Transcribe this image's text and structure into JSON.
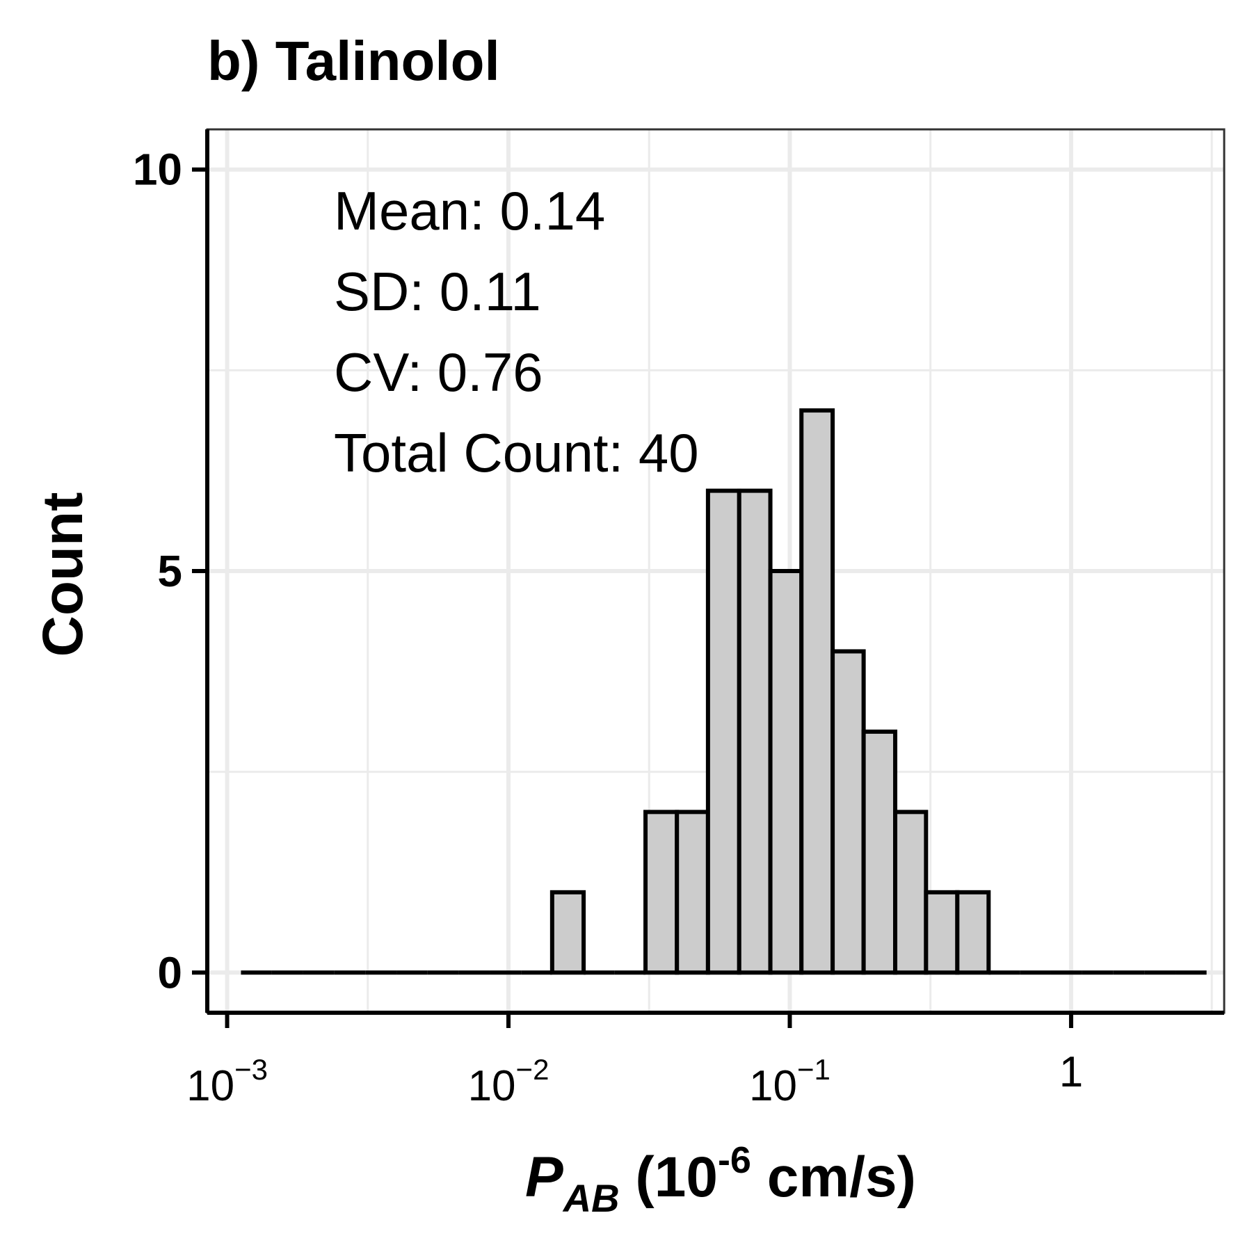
{
  "chart_data": {
    "type": "bar",
    "title": "b) Talinolol",
    "ylabel": "Count",
    "xlabel": {
      "symbol": "P",
      "subscript": "AB",
      "unit_open": " (10",
      "unit_exp": "-6",
      "unit_close": " cm/s)"
    },
    "x_scale": "log10",
    "xlim": [
      0.00085,
      3.5
    ],
    "ylim": [
      -0.5,
      10.5
    ],
    "grid": true,
    "y_ticks": [
      {
        "value": 0,
        "label": "0"
      },
      {
        "value": 5,
        "label": "5"
      },
      {
        "value": 10,
        "label": "10"
      }
    ],
    "x_ticks": [
      {
        "value": 0.001,
        "base": "10",
        "exp": "−3"
      },
      {
        "value": 0.01,
        "base": "10",
        "exp": "−2"
      },
      {
        "value": 0.1,
        "base": "10",
        "exp": "−1"
      },
      {
        "value": 1,
        "base": "1",
        "exp": ""
      }
    ],
    "bin_edges": [
      0.00112,
      0.00144,
      0.00186,
      0.0024,
      0.0031,
      0.004,
      0.00516,
      0.00666,
      0.0086,
      0.0111,
      0.0143,
      0.0185,
      0.0238,
      0.0307,
      0.0397,
      0.0512,
      0.0661,
      0.0853,
      0.11,
      0.142,
      0.183,
      0.237,
      0.305,
      0.394,
      0.509,
      0.657,
      0.848,
      1.09,
      1.41,
      1.82,
      2.35,
      3.03
    ],
    "counts": [
      0,
      0,
      0,
      0,
      0,
      0,
      0,
      0,
      0,
      0,
      1,
      0,
      0,
      2,
      2,
      6,
      6,
      5,
      7,
      4,
      3,
      2,
      1,
      1,
      0,
      0,
      0,
      0,
      0,
      0,
      0
    ],
    "bar_fill": "#cccccc",
    "bar_edge": "#000000",
    "grid_color": "#ebebeb",
    "annotations": [
      "Mean: 0.14",
      "SD: 0.11",
      "CV: 0.76",
      "Total Count: 40"
    ]
  }
}
